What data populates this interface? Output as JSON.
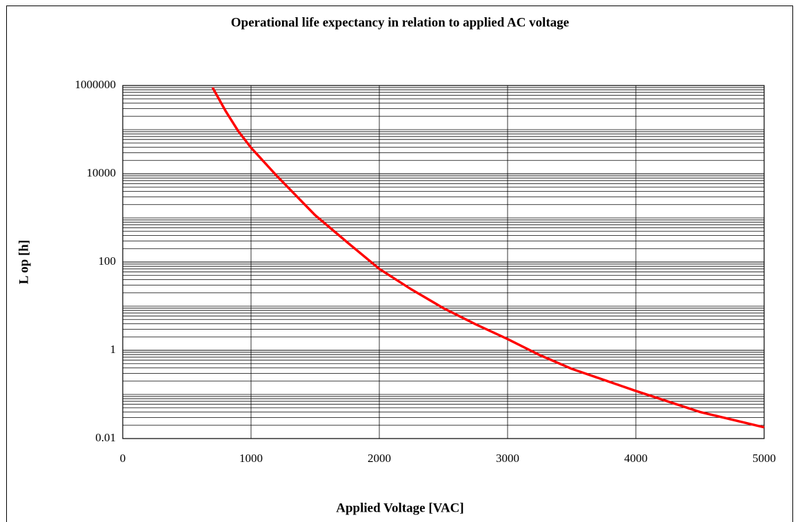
{
  "chart_data": {
    "type": "line",
    "title": "Operational life expectancy in relation to applied AC voltage",
    "x_label": "Applied Voltage [VAC]",
    "y_label": "L op [h]",
    "x": [
      700,
      800,
      900,
      1000,
      1200,
      1500,
      1750,
      2000,
      2250,
      2500,
      2750,
      3000,
      3250,
      3500,
      4000,
      4500,
      5000
    ],
    "series": [
      {
        "name": "L op",
        "color": "#ff0000",
        "values": [
          900000,
          270000,
          93000,
          39000,
          9000,
          1150,
          280,
          70,
          24,
          9,
          3.9,
          1.8,
          0.78,
          0.38,
          0.12,
          0.04,
          0.018
        ]
      }
    ],
    "xlim": [
      0,
      5000
    ],
    "xticks": [
      0,
      1000,
      2000,
      3000,
      4000,
      5000
    ],
    "ylim": [
      0.01,
      1000000
    ],
    "yticks": [
      0.01,
      1,
      100,
      10000,
      1000000
    ],
    "y_log": true,
    "grid": true,
    "y_minor_grid": true
  }
}
